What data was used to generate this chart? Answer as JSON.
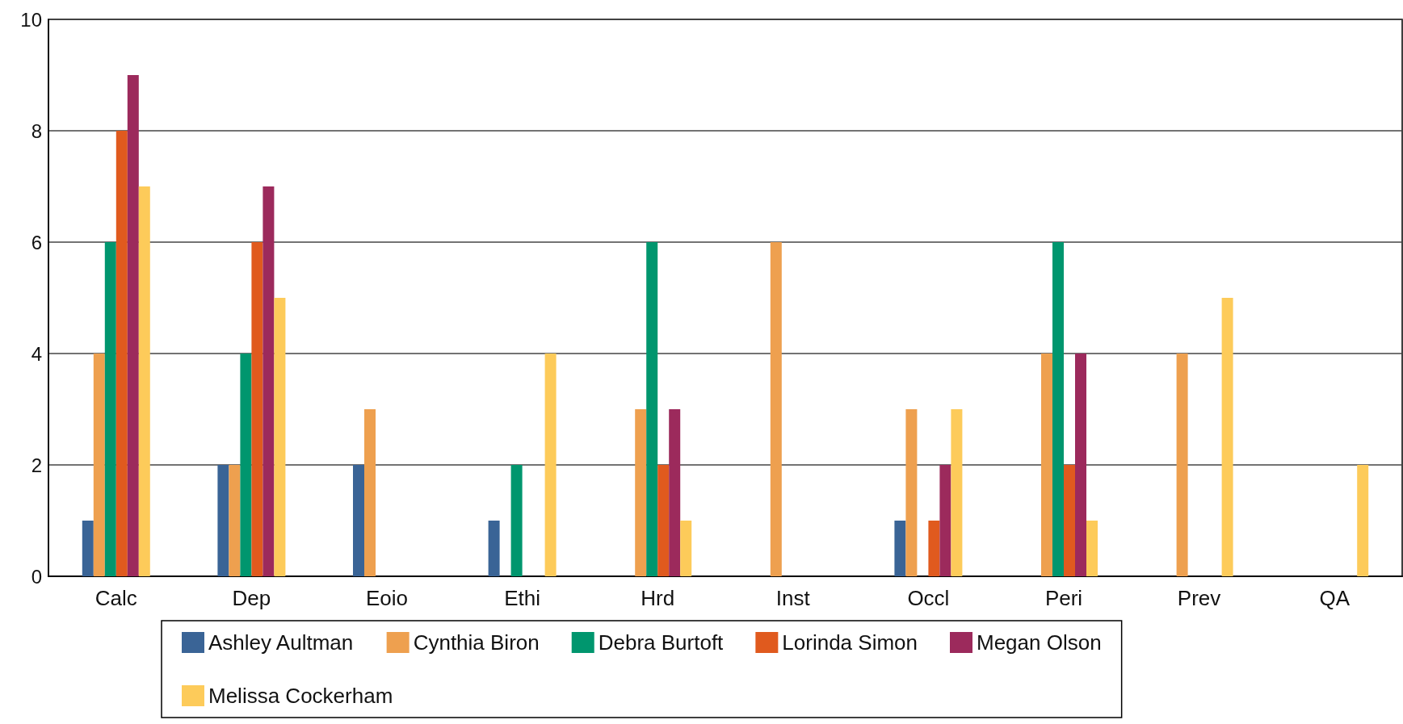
{
  "chart_data": {
    "type": "bar",
    "categories": [
      "Calc",
      "Dep",
      "Eoio",
      "Ethi",
      "Hrd",
      "Inst",
      "Occl",
      "Peri",
      "Prev",
      "QA"
    ],
    "series": [
      {
        "name": "Ashley Aultman",
        "color": "#3a6496",
        "values": [
          1,
          2,
          2,
          1,
          0,
          0,
          1,
          0,
          0,
          0
        ]
      },
      {
        "name": "Cynthia Biron",
        "color": "#eea04f",
        "values": [
          4,
          2,
          3,
          0,
          3,
          6,
          3,
          4,
          4,
          0
        ]
      },
      {
        "name": "Debra Burtoft",
        "color": "#00966e",
        "values": [
          6,
          4,
          0,
          2,
          6,
          0,
          0,
          6,
          0,
          0
        ]
      },
      {
        "name": "Lorinda Simon",
        "color": "#e05a1e",
        "values": [
          8,
          6,
          0,
          0,
          2,
          0,
          1,
          2,
          0,
          0
        ]
      },
      {
        "name": "Megan Olson",
        "color": "#9c2a5c",
        "values": [
          9,
          7,
          0,
          0,
          3,
          0,
          2,
          4,
          0,
          0
        ]
      },
      {
        "name": "Melissa Cockerham",
        "color": "#fdcb5a",
        "values": [
          7,
          5,
          0,
          4,
          1,
          0,
          3,
          1,
          5,
          2
        ]
      }
    ],
    "ylim": [
      0,
      10
    ],
    "yticks": [
      0,
      2,
      4,
      6,
      8,
      10
    ],
    "grid": "y",
    "legend": "bottom"
  }
}
